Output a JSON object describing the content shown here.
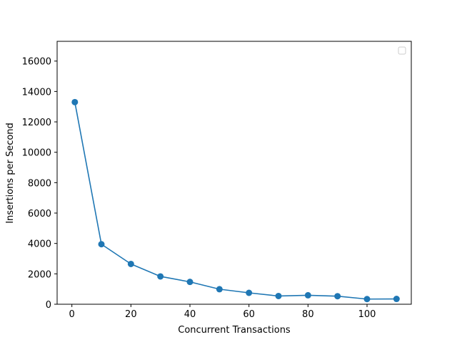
{
  "chart_data": {
    "type": "line",
    "title": "",
    "xlabel": "Concurrent Transactions",
    "ylabel": "Insertions per Second",
    "xlim": [
      -5,
      115
    ],
    "ylim": [
      0,
      17300
    ],
    "xticks": [
      0,
      20,
      40,
      60,
      80,
      100
    ],
    "yticks": [
      0,
      2000,
      4000,
      6000,
      8000,
      10000,
      12000,
      14000,
      16000
    ],
    "grid": false,
    "legend": "top-right",
    "series": [
      {
        "color": "#1f77b4",
        "marker": "circle",
        "x": [
          1,
          10,
          20,
          30,
          40,
          50,
          60,
          70,
          80,
          90,
          100,
          110
        ],
        "y": [
          13300,
          3950,
          2650,
          1830,
          1470,
          990,
          750,
          540,
          590,
          530,
          340,
          350
        ]
      }
    ]
  }
}
